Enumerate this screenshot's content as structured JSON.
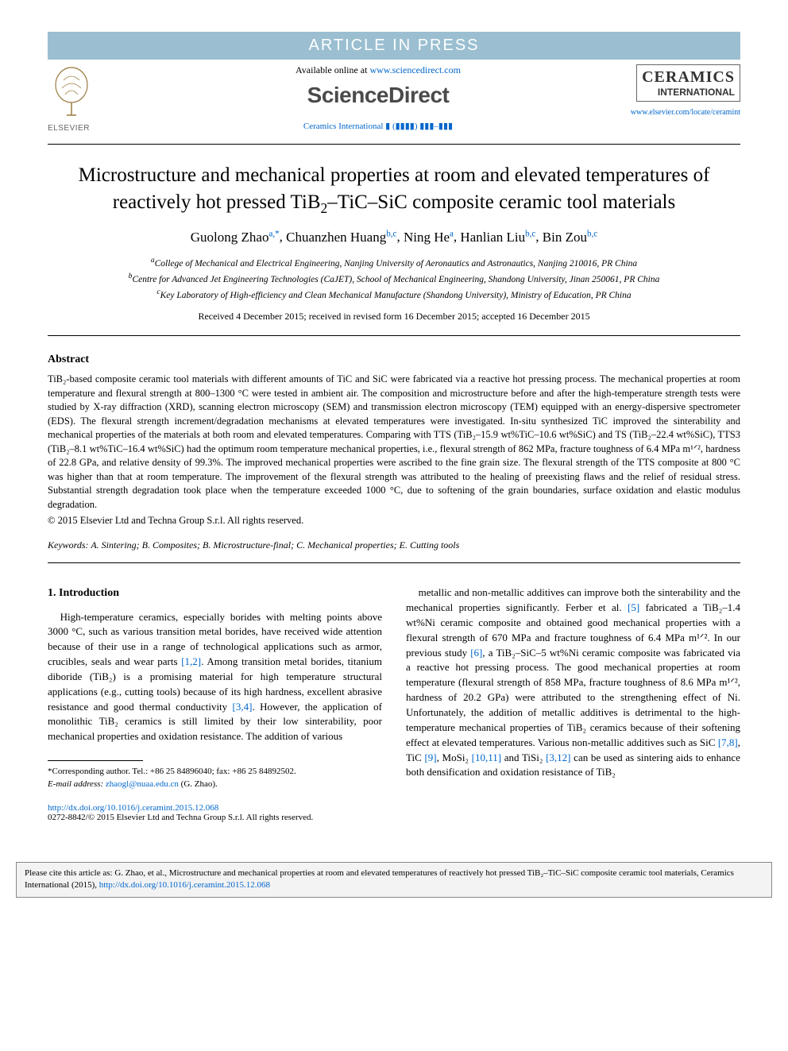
{
  "banner": "ARTICLE IN PRESS",
  "header": {
    "available_prefix": "Available online at ",
    "available_url": "www.sciencedirect.com",
    "sd_logo": "ScienceDirect",
    "journal_ref": "Ceramics International ▮ (▮▮▮▮) ▮▮▮–▮▮▮",
    "elsevier_label": "ELSEVIER",
    "journal_title": "CERAMICS",
    "journal_subtitle": "INTERNATIONAL",
    "journal_url": "www.elsevier.com/locate/ceramint"
  },
  "title_parts": {
    "pre": "Microstructure and mechanical properties at room and elevated temperatures of reactively hot pressed TiB",
    "sub": "2",
    "post": "–TiC–SiC composite ceramic tool materials"
  },
  "authors": [
    {
      "name": "Guolong Zhao",
      "sup": "a,*"
    },
    {
      "name": "Chuanzhen Huang",
      "sup": "b,c"
    },
    {
      "name": "Ning He",
      "sup": "a"
    },
    {
      "name": "Hanlian Liu",
      "sup": "b,c"
    },
    {
      "name": "Bin Zou",
      "sup": "b,c"
    }
  ],
  "affiliations": [
    {
      "sup": "a",
      "text": "College of Mechanical and Electrical Engineering, Nanjing University of Aeronautics and Astronautics, Nanjing 210016, PR China"
    },
    {
      "sup": "b",
      "text": "Centre for Advanced Jet Engineering Technologies (CaJET), School of Mechanical Engineering, Shandong University, Jinan 250061, PR China"
    },
    {
      "sup": "c",
      "text": "Key Laboratory of High-efficiency and Clean Mechanical Manufacture (Shandong University), Ministry of Education, PR China"
    }
  ],
  "dates": "Received 4 December 2015; received in revised form 16 December 2015; accepted 16 December 2015",
  "abstract_heading": "Abstract",
  "abstract_text": "TiB₂-based composite ceramic tool materials with different amounts of TiC and SiC were fabricated via a reactive hot pressing process. The mechanical properties at room temperature and flexural strength at 800–1300 °C were tested in ambient air. The composition and microstructure before and after the high-temperature strength tests were studied by X-ray diffraction (XRD), scanning electron microscopy (SEM) and transmission electron microscopy (TEM) equipped with an energy-dispersive spectrometer (EDS). The flexural strength increment/degradation mechanisms at elevated temperatures were investigated. In-situ synthesized TiC improved the sinterability and mechanical properties of the materials at both room and elevated temperatures. Comparing with TTS (TiB₂–15.9 wt%TiC–10.6 wt%SiC) and TS (TiB₂–22.4 wt%SiC), TTS3 (TiB₂–8.1 wt%TiC–16.4 wt%SiC) had the optimum room temperature mechanical properties, i.e., flexural strength of 862 MPa, fracture toughness of 6.4 MPa m¹ᐟ², hardness of 22.8 GPa, and relative density of 99.3%. The improved mechanical properties were ascribed to the fine grain size. The flexural strength of the TTS composite at 800 °C was higher than that at room temperature. The improvement of the flexural strength was attributed to the healing of preexisting flaws and the relief of residual stress. Substantial strength degradation took place when the temperature exceeded 1000 °C, due to softening of the grain boundaries, surface oxidation and elastic modulus degradation.",
  "abstract_copyright": "© 2015 Elsevier Ltd and Techna Group S.r.l. All rights reserved.",
  "keywords_label": "Keywords:",
  "keywords_text": " A. Sintering; B. Composites; B. Microstructure-final; C. Mechanical properties; E. Cutting tools",
  "section1_heading": "1. Introduction",
  "col_left_text": "High-temperature ceramics, especially borides with melting points above 3000 °C, such as various transition metal borides, have received wide attention because of their use in a range of technological applications such as armor, crucibles, seals and wear parts [1,2]. Among transition metal borides, titanium diboride (TiB₂) is a promising material for high temperature structural applications (e.g., cutting tools) because of its high hardness, excellent abrasive resistance and good thermal conductivity [3,4]. However, the application of monolithic TiB₂ ceramics is still limited by their low sinterability, poor mechanical properties and oxidation resistance. The addition of various",
  "col_right_text": "metallic and non-metallic additives can improve both the sinterability and the mechanical properties significantly. Ferber et al. [5] fabricated a TiB₂–1.4 wt%Ni ceramic composite and obtained good mechanical properties with a flexural strength of 670 MPa and fracture toughness of 6.4 MPa m¹ᐟ². In our previous study [6], a TiB₂–SiC–5 wt%Ni ceramic composite was fabricated via a reactive hot pressing process. The good mechanical properties at room temperature (flexural strength of 858 MPa, fracture toughness of 8.6 MPa m¹ᐟ², hardness of 20.2 GPa) were attributed to the strengthening effect of Ni. Unfortunately, the addition of metallic additives is detrimental to the high-temperature mechanical properties of TiB₂ ceramics because of their softening effect at elevated temperatures. Various non-metallic additives such as SiC [7,8], TiC [9], MoSi₂ [10,11] and TiSi₂ [3,12] can be used as sintering aids to enhance both densification and oxidation resistance of TiB₂",
  "footnote": {
    "corr": "*Corresponding author. Tel.: +86 25 84896040; fax: +86 25 84892502.",
    "email_label": "E-mail address: ",
    "email": "zhaogl@nuaa.edu.cn",
    "email_suffix": " (G. Zhao)."
  },
  "doi": {
    "url": "http://dx.doi.org/10.1016/j.ceramint.2015.12.068",
    "issn_line": "0272-8842/© 2015 Elsevier Ltd and Techna Group S.r.l. All rights reserved."
  },
  "cite_box": {
    "prefix": "Please cite this article as: G. Zhao, et al., Microstructure and mechanical properties at room and elevated temperatures of reactively hot pressed TiB₂–TiC–SiC composite ceramic tool materials, Ceramics International (2015), ",
    "url": "http://dx.doi.org/10.1016/j.ceramint.2015.12.068"
  },
  "colors": {
    "banner_bg": "#9bbfd1",
    "banner_fg": "#ffffff",
    "link": "#0066cc",
    "text": "#000000",
    "citebox_bg": "#f3f3f3"
  }
}
